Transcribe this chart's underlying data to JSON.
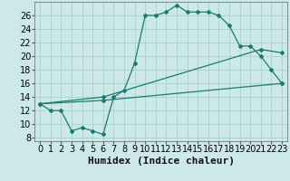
{
  "xlabel": "Humidex (Indice chaleur)",
  "bg_color": "#cce8e8",
  "grid_color": "#aad4d4",
  "line_color": "#1a7a6e",
  "xlim": [
    -0.5,
    23.5
  ],
  "ylim": [
    7.5,
    28.0
  ],
  "xticks": [
    0,
    1,
    2,
    3,
    4,
    5,
    6,
    7,
    8,
    9,
    10,
    11,
    12,
    13,
    14,
    15,
    16,
    17,
    18,
    19,
    20,
    21,
    22,
    23
  ],
  "yticks": [
    8,
    10,
    12,
    14,
    16,
    18,
    20,
    22,
    24,
    26
  ],
  "curve1_x": [
    0,
    1,
    2,
    3,
    4,
    5,
    6,
    7,
    8,
    9,
    10,
    11,
    12,
    13,
    14,
    15,
    16,
    17,
    18,
    19,
    20,
    21,
    22,
    23
  ],
  "curve1_y": [
    13,
    12,
    12,
    9,
    9.5,
    9,
    8.5,
    14,
    15,
    19,
    26,
    26,
    26.5,
    27.5,
    26.5,
    26.5,
    26.5,
    26,
    24.5,
    21.5,
    21.5,
    20,
    18,
    16
  ],
  "curve2_x": [
    0,
    6,
    21,
    23
  ],
  "curve2_y": [
    13,
    14,
    21,
    20.5
  ],
  "curve3_x": [
    0,
    6,
    23
  ],
  "curve3_y": [
    13,
    13.5,
    16
  ],
  "font_size": 7,
  "xlabel_fontsize": 8
}
